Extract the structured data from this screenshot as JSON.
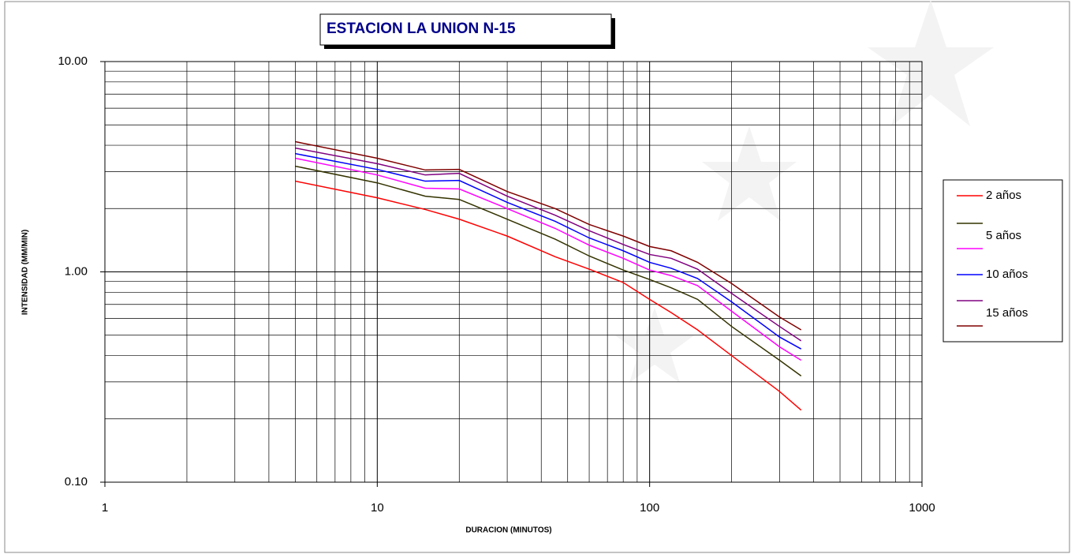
{
  "chart_data": {
    "type": "line",
    "title": "ESTACION LA UNION N-15",
    "xlabel": "DURACION (MINUTOS)",
    "ylabel": "INTENSIDAD (MM/MIN)",
    "xscale": "log",
    "yscale": "log",
    "grid": true,
    "minor_grid": true,
    "legend": "right",
    "xlim": [
      1,
      1000
    ],
    "xticks": [
      1,
      10,
      100,
      1000
    ],
    "ylim": [
      0.1,
      10
    ],
    "yticks": [
      {
        "value": 0.1,
        "label": "0.10"
      },
      {
        "value": 1,
        "label": "1.00"
      },
      {
        "value": 10,
        "label": "10.00"
      }
    ],
    "x": [
      5,
      10,
      15,
      20,
      30,
      45,
      60,
      80,
      100,
      120,
      150,
      200,
      300,
      360
    ],
    "series": [
      {
        "name": "2 años",
        "color": "#ff0000",
        "values": [
          2.7,
          2.25,
          1.98,
          1.78,
          1.48,
          1.18,
          1.03,
          0.89,
          0.74,
          0.64,
          0.53,
          0.4,
          0.27,
          0.22
        ]
      },
      {
        "name": "5 años",
        "color": "#333300",
        "values": [
          3.18,
          2.65,
          2.29,
          2.21,
          1.78,
          1.43,
          1.19,
          1.02,
          0.92,
          0.84,
          0.74,
          0.55,
          0.38,
          0.32
        ]
      },
      {
        "color": "#ff00ff",
        "values": [
          3.47,
          2.89,
          2.5,
          2.48,
          2.0,
          1.61,
          1.34,
          1.16,
          1.02,
          0.96,
          0.86,
          0.65,
          0.44,
          0.38
        ]
      },
      {
        "name": "10 años",
        "color": "#0000ff",
        "values": [
          3.65,
          3.07,
          2.7,
          2.72,
          2.14,
          1.74,
          1.45,
          1.26,
          1.11,
          1.04,
          0.93,
          0.72,
          0.49,
          0.43
        ]
      },
      {
        "name": "15 años",
        "color": "#800080",
        "values": [
          3.88,
          3.27,
          2.89,
          2.94,
          2.29,
          1.86,
          1.57,
          1.35,
          1.21,
          1.16,
          1.03,
          0.79,
          0.55,
          0.47
        ]
      },
      {
        "color": "#800000",
        "values": [
          4.16,
          3.47,
          3.05,
          3.07,
          2.41,
          2.0,
          1.68,
          1.48,
          1.32,
          1.26,
          1.11,
          0.88,
          0.61,
          0.53
        ]
      }
    ]
  }
}
